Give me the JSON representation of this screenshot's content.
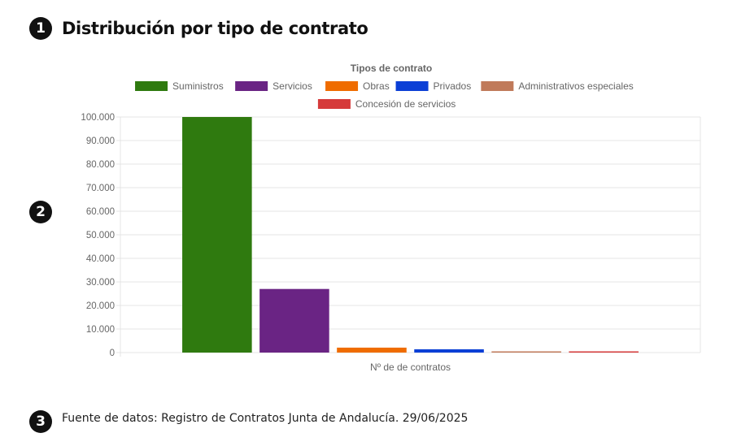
{
  "sections": {
    "marker1": "1",
    "marker2": "2",
    "marker3": "3",
    "title": "Distribución por tipo de contrato",
    "source": "Fuente de datos: Registro de Contratos Junta de Andalucía. 29/06/2025"
  },
  "chart_data": {
    "type": "bar",
    "legend_title": "Tipos de contrato",
    "legend_position": "top",
    "categories": [
      "Nº de de contratos"
    ],
    "xlabel": "Nº de de contratos",
    "ylabel": "",
    "ylim": [
      0,
      100000
    ],
    "yticks": [
      "0",
      "10.000",
      "20.000",
      "30.000",
      "40.000",
      "50.000",
      "60.000",
      "70.000",
      "80.000",
      "90.000",
      "100.000"
    ],
    "grid": true,
    "series": [
      {
        "name": "Suministros",
        "values": [
          100000
        ],
        "color": "#2f7a0f"
      },
      {
        "name": "Servicios",
        "values": [
          27000
        ],
        "color": "#6a2484"
      },
      {
        "name": "Obras",
        "values": [
          2100
        ],
        "color": "#ef6c00"
      },
      {
        "name": "Privados",
        "values": [
          1400
        ],
        "color": "#0b3fd6"
      },
      {
        "name": "Administrativos especiales",
        "values": [
          150
        ],
        "color": "#c07a5a"
      },
      {
        "name": "Concesión de servicios",
        "values": [
          200
        ],
        "color": "#d63a3a"
      }
    ]
  }
}
